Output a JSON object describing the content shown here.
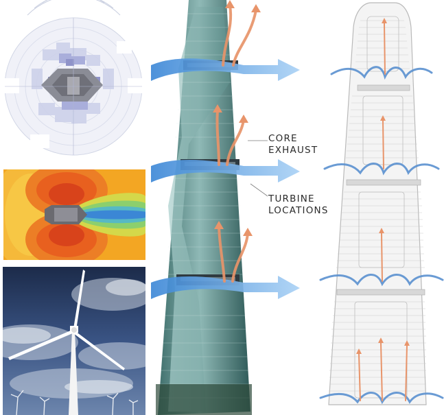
{
  "labels": {
    "core_exhaust": [
      "CORE",
      "EXHAUST"
    ],
    "turbine_locations": [
      "TURBINE",
      "LOCATIONS"
    ]
  },
  "colors": {
    "wind_arrow": "#6fa8e0",
    "exhaust_arrow": "#e8946a",
    "cfd_hot": "#e8501c",
    "cfd_cold": "#3a8fd8",
    "sky": "#2a3f66",
    "tower_glass": "#4f8a86"
  },
  "icons": [
    "wind-rose-diagram",
    "cfd-wind-simulation",
    "wind-turbine-photo",
    "tower-rendering",
    "tower-section-diagram"
  ]
}
